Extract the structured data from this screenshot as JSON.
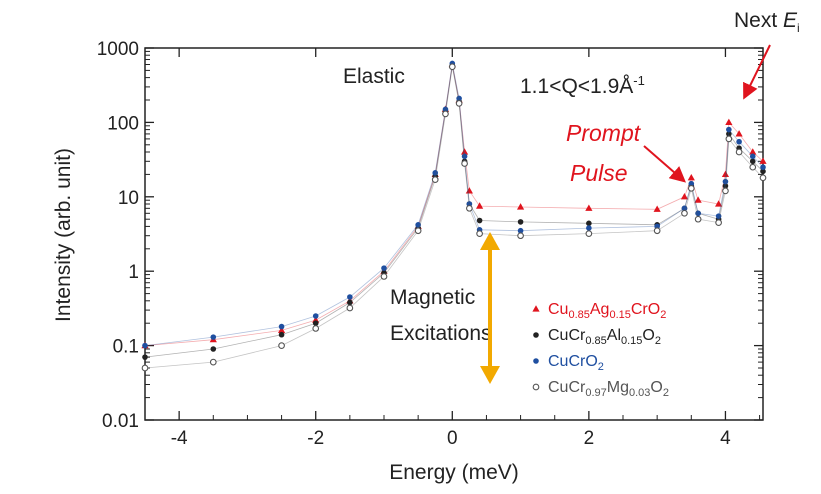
{
  "chart_data": {
    "type": "scatter",
    "xlabel": "Energy (meV)",
    "ylabel": "Intensity (arb. unit)",
    "xlim": [
      -4.5,
      4.55
    ],
    "ylim": [
      0.01,
      1000
    ],
    "yscale": "log",
    "grid": false,
    "legend_position": "bottom-right",
    "x_ticks": [
      -4,
      -2,
      0,
      2,
      4
    ],
    "x_tick_labels": [
      "-4",
      "-2",
      "0",
      "2",
      "4"
    ],
    "y_ticks": [
      0.01,
      0.1,
      1,
      10,
      100,
      1000
    ],
    "y_tick_labels": [
      "0.01",
      "0.1",
      "1",
      "10",
      "100",
      "1000"
    ],
    "annotations": {
      "elastic": "Elastic",
      "q_range_prefix": "1.1<Q<1.9Å",
      "q_range_sup": "-1",
      "prompt": "Prompt",
      "pulse": "Pulse",
      "magnetic": "Magnetic",
      "excitations": "Excitations",
      "next_prefix": "Next ",
      "next_E": "E",
      "next_sub": "i"
    },
    "series": [
      {
        "label_parts": [
          [
            "Cu",
            ""
          ],
          [
            "0.85",
            "sub"
          ],
          [
            "Ag",
            ""
          ],
          [
            "0.15",
            "sub"
          ],
          [
            "CrO",
            ""
          ],
          [
            "2",
            "sub"
          ]
        ],
        "color": "#e0141e",
        "marker": "triangle",
        "x": [
          -4.5,
          -3.5,
          -2.5,
          -2.0,
          -1.5,
          -1.0,
          -0.5,
          -0.25,
          -0.1,
          0.0,
          0.1,
          0.18,
          0.25,
          0.4,
          1.0,
          2.0,
          3.0,
          3.4,
          3.5,
          3.6,
          3.9,
          4.0,
          4.05,
          4.2,
          4.4,
          4.55
        ],
        "y": [
          0.1,
          0.12,
          0.16,
          0.22,
          0.4,
          1.0,
          4.0,
          20,
          150,
          600,
          200,
          40,
          12,
          7.5,
          7.3,
          7.0,
          6.8,
          10,
          18,
          9,
          8,
          20,
          100,
          70,
          40,
          30
        ]
      },
      {
        "label_parts": [
          [
            "CuCr",
            ""
          ],
          [
            "0.85",
            "sub"
          ],
          [
            "Al",
            ""
          ],
          [
            "0.15",
            "sub"
          ],
          [
            "O",
            ""
          ],
          [
            "2",
            "sub"
          ]
        ],
        "color": "#222222",
        "marker": "circle-filled",
        "x": [
          -4.5,
          -3.5,
          -2.5,
          -2.0,
          -1.5,
          -1.0,
          -0.5,
          -0.25,
          -0.1,
          0.0,
          0.1,
          0.18,
          0.25,
          0.4,
          1.0,
          2.0,
          3.0,
          3.4,
          3.5,
          3.6,
          3.9,
          4.0,
          4.05,
          4.2,
          4.4,
          4.55
        ],
        "y": [
          0.07,
          0.09,
          0.14,
          0.2,
          0.38,
          0.95,
          3.8,
          19,
          140,
          580,
          190,
          30,
          8,
          4.8,
          4.6,
          4.4,
          4.2,
          7,
          14,
          6,
          5,
          14,
          70,
          45,
          30,
          22
        ]
      },
      {
        "label_parts": [
          [
            "CuCrO",
            ""
          ],
          [
            "2",
            "sub"
          ]
        ],
        "color": "#1f4fa0",
        "marker": "circle",
        "x": [
          -4.5,
          -3.5,
          -2.5,
          -2.0,
          -1.5,
          -1.0,
          -0.5,
          -0.25,
          -0.1,
          0.0,
          0.1,
          0.18,
          0.25,
          0.4,
          1.0,
          2.0,
          3.0,
          3.4,
          3.5,
          3.6,
          3.9,
          4.0,
          4.05,
          4.2,
          4.4,
          4.55
        ],
        "y": [
          0.1,
          0.13,
          0.18,
          0.25,
          0.45,
          1.1,
          4.2,
          21,
          150,
          620,
          210,
          35,
          8,
          3.6,
          3.5,
          3.8,
          4.0,
          7,
          15,
          6,
          5.5,
          16,
          80,
          55,
          35,
          25
        ]
      },
      {
        "label_parts": [
          [
            "CuCr",
            ""
          ],
          [
            "0.97",
            "sub"
          ],
          [
            "Mg",
            ""
          ],
          [
            "0.03",
            "sub"
          ],
          [
            "O",
            ""
          ],
          [
            "2",
            "sub"
          ]
        ],
        "color": "#555555",
        "marker": "circle-open",
        "x": [
          -4.5,
          -3.5,
          -2.5,
          -2.0,
          -1.5,
          -1.0,
          -0.5,
          -0.25,
          -0.1,
          0.0,
          0.1,
          0.18,
          0.25,
          0.4,
          1.0,
          2.0,
          3.0,
          3.4,
          3.5,
          3.6,
          3.9,
          4.0,
          4.05,
          4.2,
          4.4,
          4.55
        ],
        "y": [
          0.05,
          0.06,
          0.1,
          0.17,
          0.32,
          0.85,
          3.5,
          17,
          130,
          560,
          180,
          28,
          7,
          3.2,
          3.0,
          3.2,
          3.5,
          6,
          13,
          5,
          4.5,
          12,
          60,
          40,
          25,
          18
        ]
      }
    ]
  }
}
